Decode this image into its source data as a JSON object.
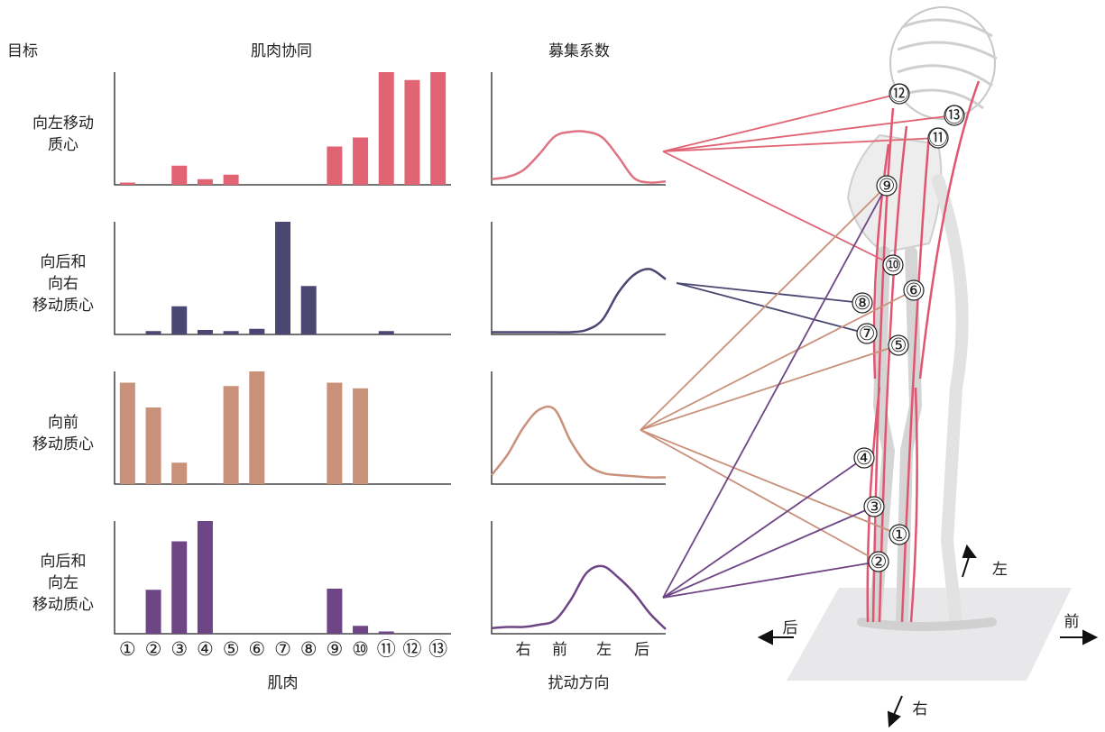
{
  "headers": {
    "goal": "目标",
    "synergy": "肌肉协同",
    "recruitment": "募集系数"
  },
  "chart_data": [
    {
      "type": "bar",
      "title": "向左移动\n质心",
      "color": "#e06474",
      "ylim": [
        0,
        1
      ],
      "values": [
        0.02,
        0,
        0.17,
        0.05,
        0.09,
        0,
        0,
        0,
        0.34,
        0.42,
        1.0,
        0.93,
        1.0
      ]
    },
    {
      "type": "line",
      "color": "#e07383",
      "xlim": [
        0,
        11
      ],
      "ylim": [
        0,
        1
      ],
      "x": [
        0,
        1,
        2,
        3,
        4,
        5,
        6,
        7,
        8,
        9,
        10,
        11
      ],
      "values": [
        0.05,
        0.07,
        0.13,
        0.27,
        0.43,
        0.47,
        0.47,
        0.42,
        0.25,
        0.06,
        0.02,
        0.03
      ]
    },
    {
      "type": "bar",
      "title": "向后和\n向右\n移动质心",
      "color": "#4a4872",
      "ylim": [
        0,
        1
      ],
      "values": [
        0,
        0.03,
        0.25,
        0.04,
        0.03,
        0.05,
        1.0,
        0.43,
        0,
        0,
        0.03,
        0,
        0
      ]
    },
    {
      "type": "line",
      "color": "#4a4872",
      "xlim": [
        0,
        11
      ],
      "ylim": [
        0,
        1
      ],
      "x": [
        0,
        1,
        2,
        3,
        4,
        5,
        6,
        7,
        8,
        9,
        10,
        11
      ],
      "values": [
        0.02,
        0.02,
        0.02,
        0.02,
        0.02,
        0.02,
        0.04,
        0.13,
        0.37,
        0.53,
        0.58,
        0.49
      ]
    },
    {
      "type": "bar",
      "title": "向前\n移动质心",
      "color": "#c9907a",
      "ylim": [
        0,
        1
      ],
      "values": [
        0.9,
        0.68,
        0.19,
        0,
        0.87,
        1.0,
        0,
        0,
        0.9,
        0.85,
        0,
        0,
        0
      ]
    },
    {
      "type": "line",
      "color": "#c9907a",
      "xlim": [
        0,
        11
      ],
      "ylim": [
        0,
        1
      ],
      "x": [
        0,
        1,
        2,
        3,
        4,
        5,
        6,
        7,
        8,
        9,
        10,
        11
      ],
      "values": [
        0.08,
        0.26,
        0.5,
        0.66,
        0.66,
        0.38,
        0.18,
        0.1,
        0.08,
        0.07,
        0.06,
        0.06
      ]
    },
    {
      "type": "bar",
      "title": "向后和\n向左\n移动质心",
      "color": "#6e4585",
      "ylim": [
        0,
        1
      ],
      "values": [
        0,
        0.39,
        0.82,
        1.0,
        0,
        0,
        0,
        0,
        0.4,
        0.07,
        0.02,
        0,
        0
      ],
      "categories": [
        "①",
        "②",
        "③",
        "④",
        "⑤",
        "⑥",
        "⑦",
        "⑧",
        "⑨",
        "⑩",
        "⑪",
        "⑫",
        "⑬"
      ],
      "xlabel": "肌肉"
    },
    {
      "type": "line",
      "color": "#6e4585",
      "xlim": [
        0,
        11
      ],
      "ylim": [
        0,
        1
      ],
      "x": [
        0,
        1,
        2,
        3,
        4,
        5,
        6,
        7,
        8,
        9,
        10,
        11
      ],
      "values": [
        0.05,
        0.06,
        0.06,
        0.08,
        0.12,
        0.3,
        0.54,
        0.6,
        0.5,
        0.36,
        0.18,
        0.04
      ],
      "xticks": [
        {
          "value": 2,
          "label": "右"
        },
        {
          "value": 4.3,
          "label": "前"
        },
        {
          "value": 7.1,
          "label": "左"
        },
        {
          "value": 9.5,
          "label": "后"
        }
      ],
      "xlabel": "扰动方向"
    }
  ],
  "diagram": {
    "muscles": [
      "⑫",
      "⑬",
      "⑪",
      "⑨",
      "⑩",
      "⑥",
      "⑧",
      "⑦",
      "⑤",
      "④",
      "③",
      "①",
      "②"
    ],
    "directions": {
      "left": "左",
      "back": "后",
      "front": "前",
      "right": "右"
    }
  }
}
